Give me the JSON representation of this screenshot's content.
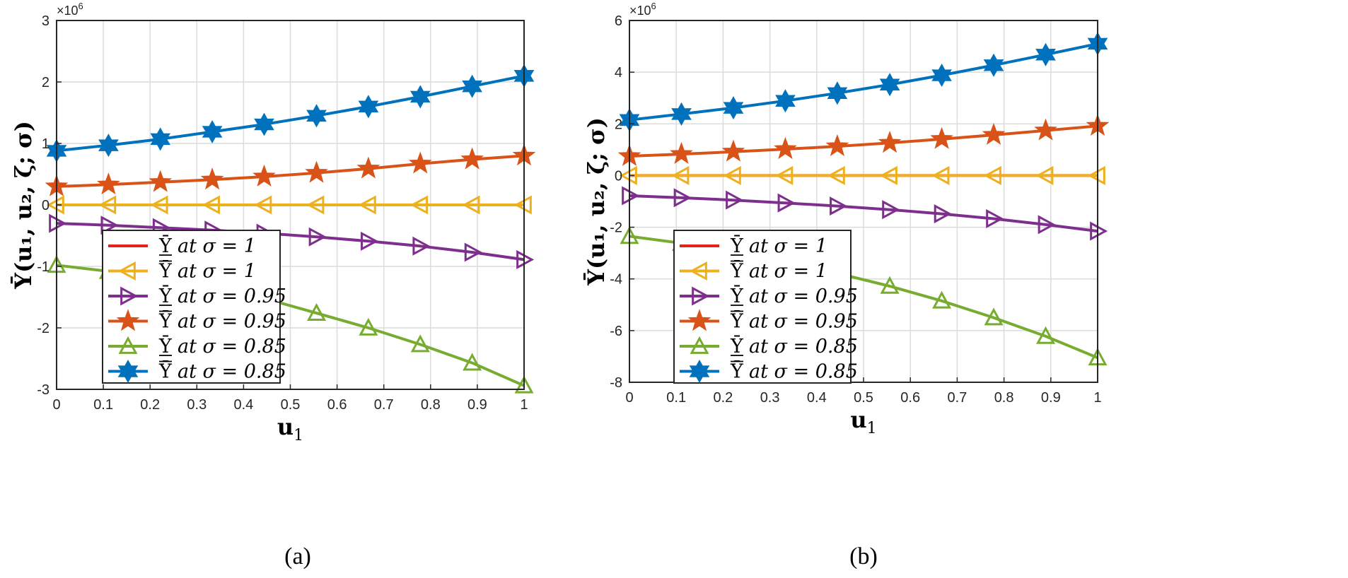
{
  "chart_data": [
    {
      "type": "line",
      "panel": "a",
      "caption": "(a)",
      "xlabel_main": "u",
      "xlabel_sub": "1",
      "ylabel": "Ῡ(u₁, u₂, ζ; σ)",
      "exponent_label": "×10",
      "exponent_power": "6",
      "xlim": [
        0,
        1
      ],
      "ylim": [
        -3,
        3
      ],
      "xticks": [
        0,
        0.1,
        0.2,
        0.3,
        0.4,
        0.5,
        0.6,
        0.7,
        0.8,
        0.9,
        1
      ],
      "xtick_labels": [
        "0",
        "0.1",
        "0.2",
        "0.3",
        "0.4",
        "0.5",
        "0.6",
        "0.7",
        "0.8",
        "0.9",
        "1"
      ],
      "yticks": [
        -3,
        -2,
        -1,
        0,
        1,
        2,
        3
      ],
      "ytick_labels": [
        "-3",
        "-2",
        "-1",
        "0",
        "1",
        "2",
        "3"
      ],
      "grid": true,
      "legend_position": "lower-left",
      "x": [
        0,
        0.111,
        0.222,
        0.333,
        0.444,
        0.556,
        0.667,
        0.778,
        0.889,
        1
      ],
      "series": [
        {
          "name": "lower at σ = 1",
          "legend_symbol": "Ῡ",
          "bar": "under",
          "legend_tail": "at σ = 1",
          "color": "#e32219",
          "marker": "none",
          "values": [
            0,
            0,
            0,
            0,
            0,
            0,
            0,
            0,
            0,
            0
          ]
        },
        {
          "name": "upper at σ = 1",
          "legend_symbol": "Ῡ",
          "bar": "over",
          "legend_tail": "at σ = 1",
          "color": "#edb120",
          "marker": "triangle-left",
          "values": [
            0,
            0,
            0,
            0,
            0,
            0,
            0,
            0,
            0,
            0
          ]
        },
        {
          "name": "lower at σ = 0.95",
          "legend_symbol": "Ῡ",
          "bar": "under",
          "legend_tail": "at σ = 0.95",
          "color": "#7e2f8e",
          "marker": "triangle-right",
          "values": [
            -0.3,
            -0.33,
            -0.37,
            -0.41,
            -0.46,
            -0.52,
            -0.59,
            -0.67,
            -0.77,
            -0.89
          ]
        },
        {
          "name": "upper at σ = 0.95",
          "legend_symbol": "Ῡ",
          "bar": "over",
          "legend_tail": "at σ = 0.95",
          "color": "#d95319",
          "marker": "star5",
          "values": [
            0.3,
            0.33,
            0.37,
            0.41,
            0.46,
            0.52,
            0.59,
            0.67,
            0.74,
            0.8
          ]
        },
        {
          "name": "lower at σ = 0.85",
          "legend_symbol": "Ῡ",
          "bar": "under",
          "legend_tail": "at σ = 0.85",
          "color": "#77ac30",
          "marker": "triangle-up",
          "values": [
            -0.98,
            -1.08,
            -1.2,
            -1.34,
            -1.52,
            -1.76,
            -2.0,
            -2.27,
            -2.57,
            -2.94
          ]
        },
        {
          "name": "upper at σ = 0.85",
          "legend_symbol": "Ῡ",
          "bar": "over",
          "legend_tail": "at σ = 0.85",
          "color": "#0072bd",
          "marker": "star6",
          "values": [
            0.88,
            0.97,
            1.07,
            1.19,
            1.31,
            1.45,
            1.6,
            1.76,
            1.93,
            2.1
          ]
        }
      ]
    },
    {
      "type": "line",
      "panel": "b",
      "caption": "(b)",
      "xlabel_main": "u",
      "xlabel_sub": "1",
      "ylabel": "Ῡ(u₁, u₂, ζ; σ)",
      "exponent_label": "×10",
      "exponent_power": "6",
      "xlim": [
        0,
        1
      ],
      "ylim": [
        -8,
        6
      ],
      "xticks": [
        0,
        0.1,
        0.2,
        0.3,
        0.4,
        0.5,
        0.6,
        0.7,
        0.8,
        0.9,
        1
      ],
      "xtick_labels": [
        "0",
        "0.1",
        "0.2",
        "0.3",
        "0.4",
        "0.5",
        "0.6",
        "0.7",
        "0.8",
        "0.9",
        "1"
      ],
      "yticks": [
        -8,
        -6,
        -4,
        -2,
        0,
        2,
        4,
        6
      ],
      "ytick_labels": [
        "-8",
        "-6",
        "-4",
        "-2",
        "0",
        "2",
        "4",
        "6"
      ],
      "grid": true,
      "legend_position": "lower-left",
      "x": [
        0,
        0.111,
        0.222,
        0.333,
        0.444,
        0.556,
        0.667,
        0.778,
        0.889,
        1
      ],
      "series": [
        {
          "name": "lower at σ = 1",
          "legend_symbol": "Ῡ",
          "bar": "under",
          "legend_tail": "at σ = 1",
          "color": "#e32219",
          "marker": "none",
          "values": [
            0,
            0,
            0,
            0,
            0,
            0,
            0,
            0,
            0,
            0
          ]
        },
        {
          "name": "upper at σ = 1",
          "legend_symbol": "Ῡ",
          "bar": "over",
          "legend_tail": "at σ = 1",
          "color": "#edb120",
          "marker": "triangle-left",
          "values": [
            0,
            0,
            0,
            0,
            0,
            0,
            0,
            0,
            0,
            0
          ]
        },
        {
          "name": "lower at σ = 0.95",
          "legend_symbol": "Ῡ",
          "bar": "under",
          "legend_tail": "at σ = 0.95",
          "color": "#7e2f8e",
          "marker": "triangle-right",
          "values": [
            -0.78,
            -0.86,
            -0.95,
            -1.06,
            -1.18,
            -1.32,
            -1.48,
            -1.67,
            -1.9,
            -2.15
          ]
        },
        {
          "name": "upper at σ = 0.95",
          "legend_symbol": "Ῡ",
          "bar": "over",
          "legend_tail": "at σ = 0.95",
          "color": "#d95319",
          "marker": "star5",
          "values": [
            0.75,
            0.83,
            0.92,
            1.02,
            1.13,
            1.26,
            1.41,
            1.57,
            1.74,
            1.92
          ]
        },
        {
          "name": "lower at σ = 0.85",
          "legend_symbol": "Ῡ",
          "bar": "under",
          "legend_tail": "at σ = 0.85",
          "color": "#77ac30",
          "marker": "triangle-up",
          "values": [
            -2.35,
            -2.62,
            -2.95,
            -3.33,
            -3.78,
            -4.28,
            -4.85,
            -5.5,
            -6.22,
            -7.05
          ]
        },
        {
          "name": "upper at σ = 0.85",
          "legend_symbol": "Ῡ",
          "bar": "over",
          "legend_tail": "at σ = 0.85",
          "color": "#0072bd",
          "marker": "star6",
          "values": [
            2.15,
            2.38,
            2.62,
            2.89,
            3.19,
            3.52,
            3.88,
            4.27,
            4.68,
            5.1
          ]
        }
      ]
    }
  ]
}
